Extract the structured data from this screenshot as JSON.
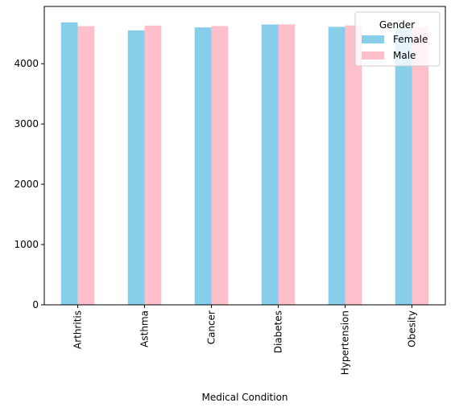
{
  "chart_data": {
    "type": "bar",
    "xlabel": "Medical Condition",
    "ylabel": "",
    "categories": [
      "Arthritis",
      "Asthma",
      "Cancer",
      "Diabetes",
      "Hypertension",
      "Obesity"
    ],
    "series": [
      {
        "name": "Female",
        "color": "#87ceeb",
        "values": [
          4686,
          4553,
          4602,
          4651,
          4611,
          4590
        ]
      },
      {
        "name": "Male",
        "color": "#ffc0cb",
        "values": [
          4622,
          4632,
          4625,
          4653,
          4634,
          4612
        ]
      }
    ],
    "ylim": [
      0,
      4950
    ],
    "yticks": [
      0,
      1000,
      2000,
      3000,
      4000
    ],
    "legend": {
      "title": "Gender",
      "placement": "top-right"
    },
    "grid": false
  }
}
